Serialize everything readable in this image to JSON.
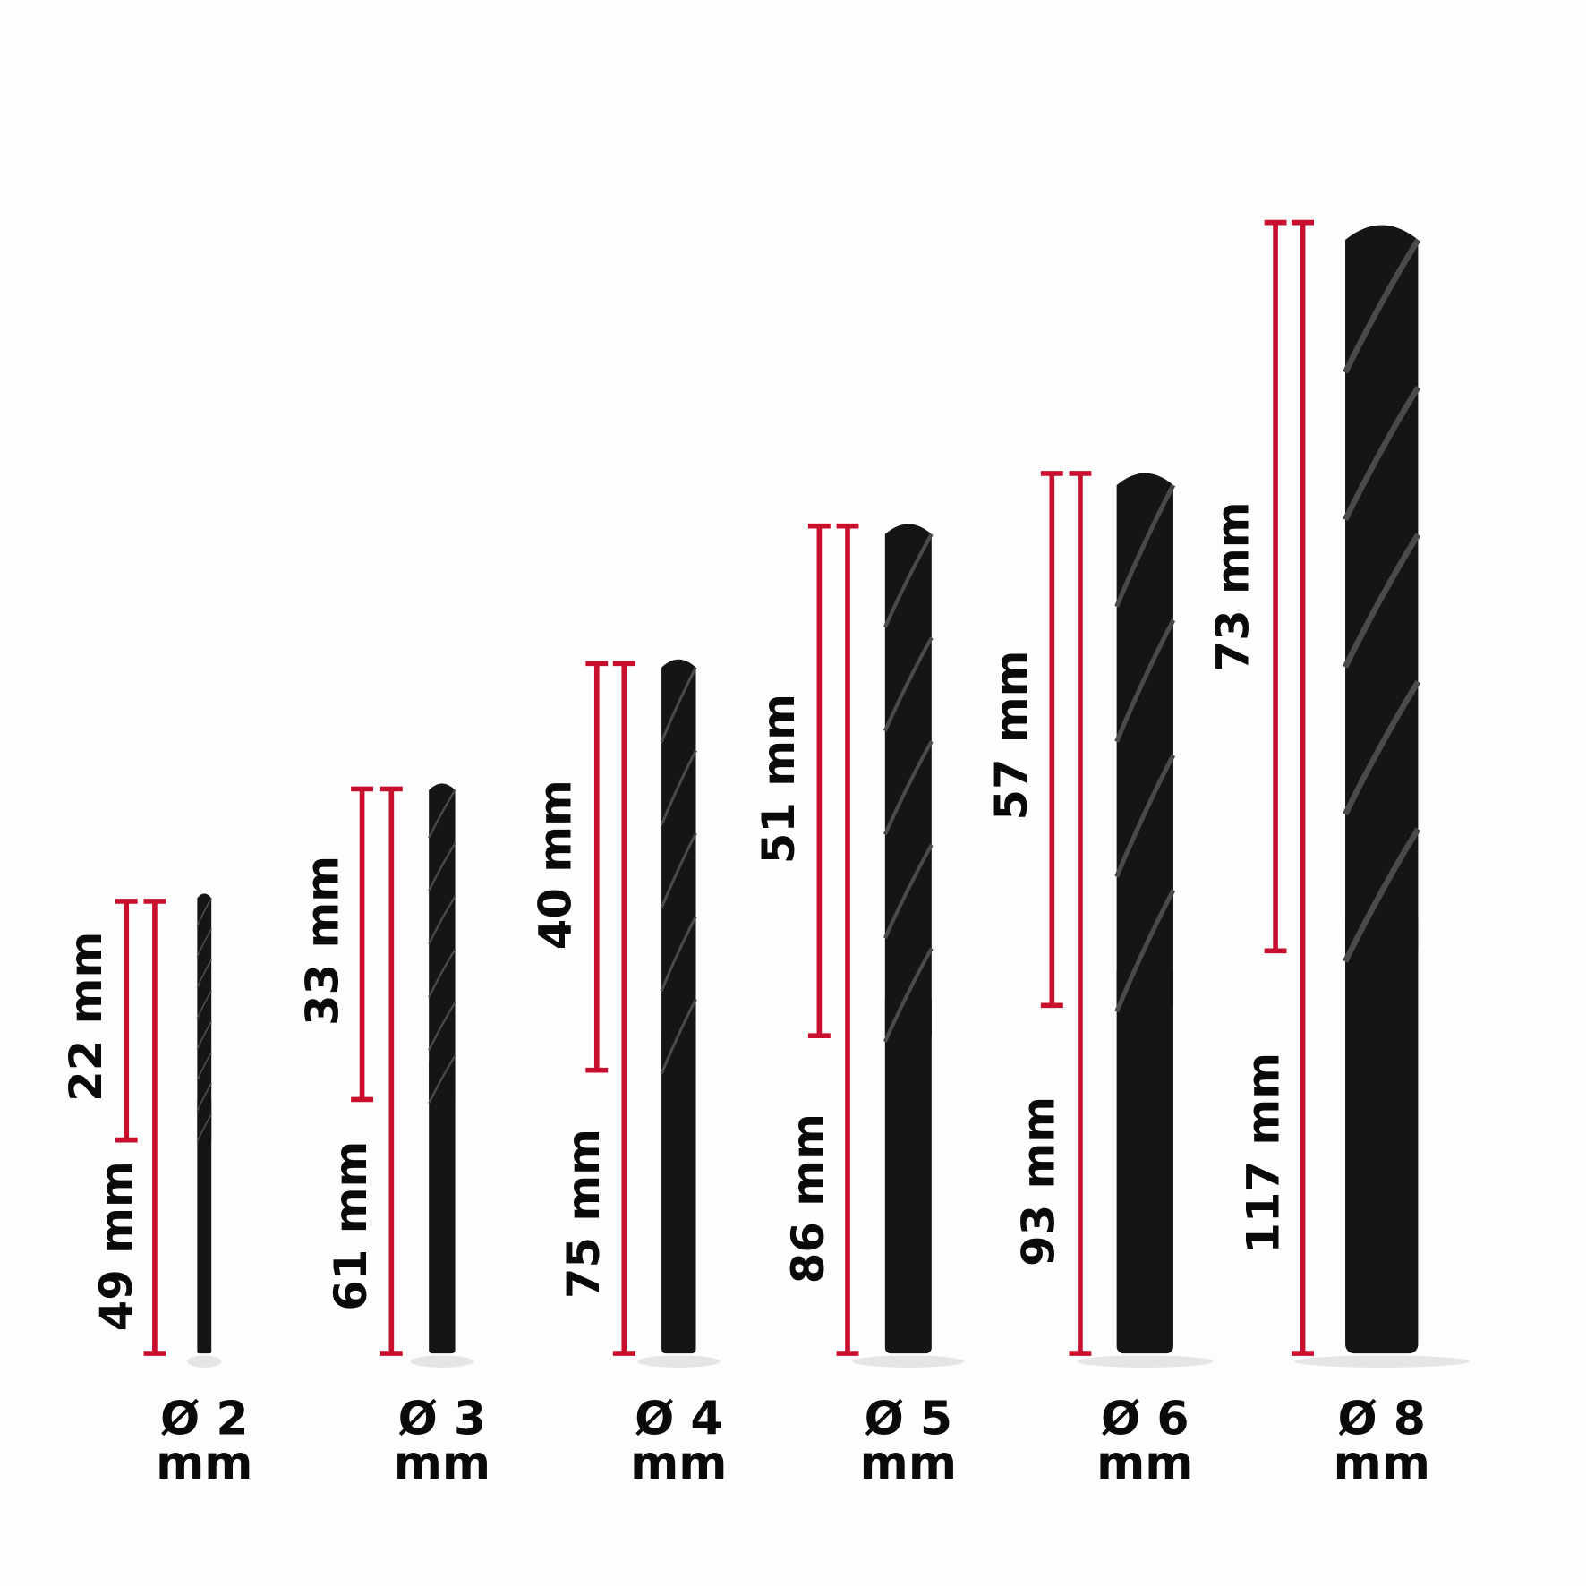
{
  "colors": {
    "dimension_line": "#c8102e",
    "drill": "#151515",
    "background": "#fdfdfd"
  },
  "drills": [
    {
      "diameter_label": "Ø 2",
      "unit": "mm",
      "flute_length": "22 mm",
      "total_length": "49 mm"
    },
    {
      "diameter_label": "Ø 3",
      "unit": "mm",
      "flute_length": "33 mm",
      "total_length": "61 mm"
    },
    {
      "diameter_label": "Ø 4",
      "unit": "mm",
      "flute_length": "40 mm",
      "total_length": "75 mm"
    },
    {
      "diameter_label": "Ø 5",
      "unit": "mm",
      "flute_length": "51 mm",
      "total_length": "86 mm"
    },
    {
      "diameter_label": "Ø 6",
      "unit": "mm",
      "flute_length": "57 mm",
      "total_length": "93 mm"
    },
    {
      "diameter_label": "Ø 8",
      "unit": "mm",
      "flute_length": "73 mm",
      "total_length": "117 mm"
    }
  ]
}
